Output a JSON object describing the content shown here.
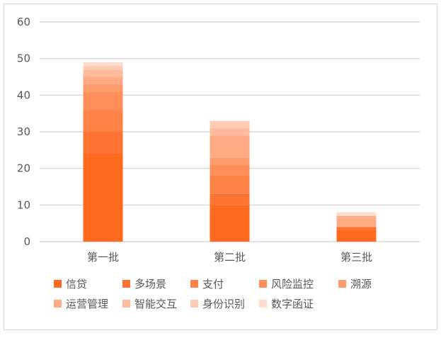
{
  "chart_data": {
    "type": "bar",
    "stacked": true,
    "title": "",
    "xlabel": "",
    "ylabel": "",
    "ylim": [
      0,
      60
    ],
    "yticks": [
      0,
      10,
      20,
      30,
      40,
      50,
      60
    ],
    "grid": true,
    "legend_position": "bottom",
    "categories": [
      "第一批",
      "第二批",
      "第三批"
    ],
    "series": [
      {
        "name": "信贷",
        "color": "#ff6a1f",
        "values": [
          24,
          10,
          3
        ]
      },
      {
        "name": "多场景",
        "color": "#ff7333",
        "values": [
          6,
          3,
          1
        ]
      },
      {
        "name": "支付",
        "color": "#ff8246",
        "values": [
          6,
          5,
          0
        ]
      },
      {
        "name": "风险监控",
        "color": "#ff8f5a",
        "values": [
          5,
          3,
          0
        ]
      },
      {
        "name": "溯源",
        "color": "#ff9c6e",
        "values": [
          2,
          2,
          0
        ]
      },
      {
        "name": "运营管理",
        "color": "#ffab85",
        "values": [
          2,
          6,
          3
        ]
      },
      {
        "name": "智能交互",
        "color": "#ffbb9c",
        "values": [
          2,
          2,
          0
        ]
      },
      {
        "name": "身份识别",
        "color": "#ffcbb3",
        "values": [
          1,
          2,
          0
        ]
      },
      {
        "name": "数字函证",
        "color": "#ffddcc",
        "values": [
          1,
          0,
          1
        ]
      }
    ]
  }
}
